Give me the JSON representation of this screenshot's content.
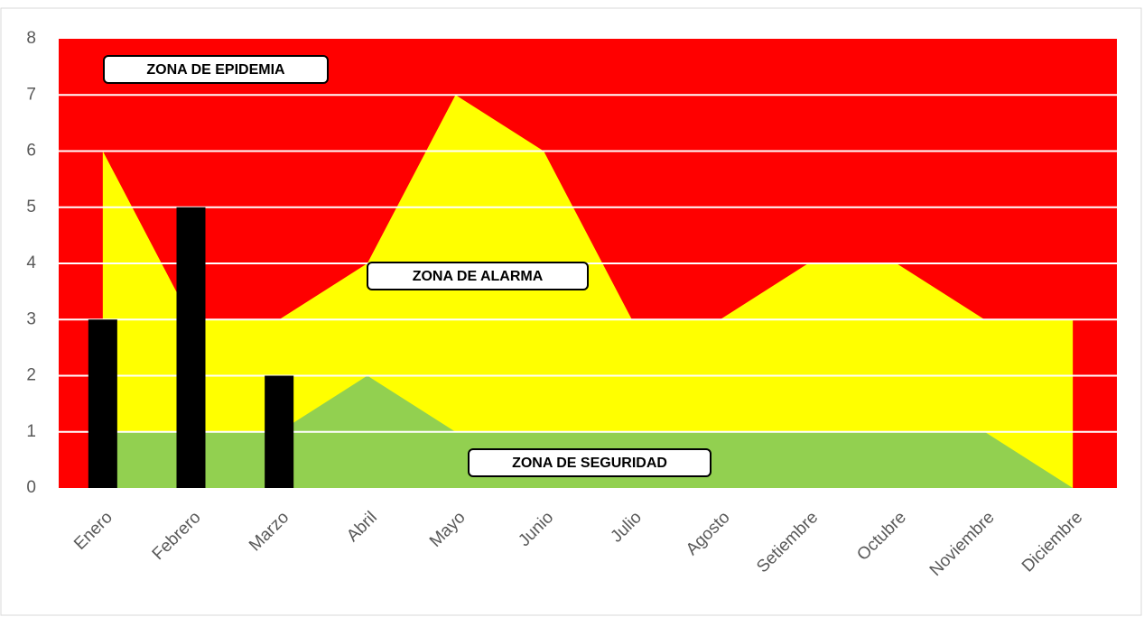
{
  "chart_data": {
    "type": "area",
    "categories": [
      "Enero",
      "Febrero",
      "Marzo",
      "Abril",
      "Mayo",
      "Junio",
      "Julio",
      "Agosto",
      "Setiembre",
      "Octubre",
      "Noviembre",
      "Diciembre"
    ],
    "plot_color": "#ff0000",
    "series": [
      {
        "type": "area",
        "color": "#ffff00",
        "values": [
          6,
          3,
          3,
          4,
          7,
          6,
          3,
          3,
          4,
          4,
          3,
          3
        ]
      },
      {
        "type": "area",
        "color": "#92d050",
        "values": [
          1,
          1,
          1,
          2,
          1,
          1,
          1,
          1,
          1,
          1,
          1,
          0
        ]
      },
      {
        "type": "bar",
        "color": "#000000",
        "values": [
          3,
          5,
          2,
          null,
          null,
          null,
          null,
          null,
          null,
          null,
          null,
          null
        ]
      }
    ],
    "annotations": [
      "ZONA DE EPIDEMIA",
      "ZONA DE ALARMA",
      "ZONA DE SEGURIDAD"
    ],
    "ylim": [
      0,
      8
    ],
    "yticks": [
      0,
      1,
      2,
      3,
      4,
      5,
      6,
      7,
      8
    ],
    "grid": true
  }
}
